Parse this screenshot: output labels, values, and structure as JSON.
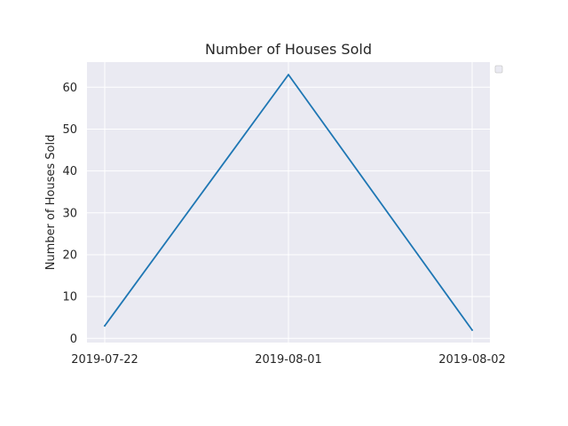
{
  "chart_data": {
    "type": "line",
    "title": "Number of Houses Sold",
    "xlabel": "",
    "ylabel": "Number of Houses Sold",
    "categories": [
      "2019-07-22",
      "2019-08-01",
      "2019-08-02"
    ],
    "series": [
      {
        "values": [
          3,
          63,
          2
        ],
        "color": "#1f77b4"
      }
    ],
    "ylim": [
      -1,
      66
    ],
    "yticks": [
      0,
      10,
      20,
      30,
      40,
      50,
      60
    ],
    "grid": true,
    "legend": "top-right (empty box)",
    "background": "#eaeaf2"
  }
}
